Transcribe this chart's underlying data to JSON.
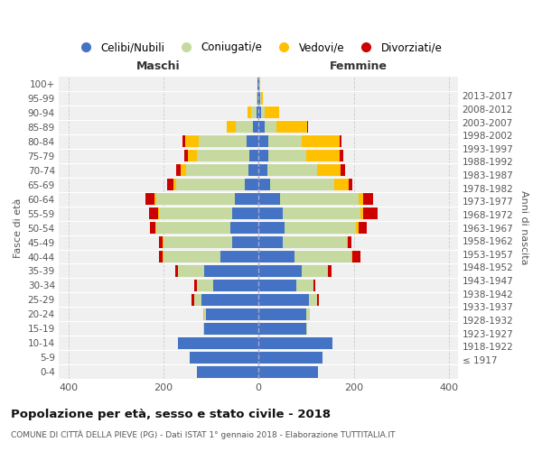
{
  "age_groups": [
    "100+",
    "95-99",
    "90-94",
    "85-89",
    "80-84",
    "75-79",
    "70-74",
    "65-69",
    "60-64",
    "55-59",
    "50-54",
    "45-49",
    "40-44",
    "35-39",
    "30-34",
    "25-29",
    "20-24",
    "15-19",
    "10-14",
    "5-9",
    "0-4"
  ],
  "birth_years": [
    "≤ 1917",
    "1918-1922",
    "1923-1927",
    "1928-1932",
    "1933-1937",
    "1938-1942",
    "1943-1947",
    "1948-1952",
    "1953-1957",
    "1958-1962",
    "1963-1967",
    "1968-1972",
    "1973-1977",
    "1978-1982",
    "1983-1987",
    "1988-1992",
    "1993-1997",
    "1998-2002",
    "2003-2007",
    "2008-2012",
    "2013-2017"
  ],
  "maschi": {
    "celibi": [
      2,
      2,
      5,
      12,
      25,
      20,
      22,
      28,
      50,
      55,
      60,
      55,
      80,
      115,
      95,
      120,
      110,
      115,
      170,
      145,
      130
    ],
    "coniugati": [
      0,
      2,
      10,
      35,
      100,
      110,
      130,
      145,
      165,
      155,
      155,
      145,
      120,
      55,
      35,
      15,
      5,
      2,
      0,
      0,
      0
    ],
    "vedovi": [
      0,
      1,
      8,
      20,
      30,
      18,
      12,
      5,
      3,
      2,
      2,
      1,
      1,
      0,
      0,
      0,
      2,
      0,
      0,
      0,
      0
    ],
    "divorziati": [
      0,
      0,
      0,
      0,
      5,
      8,
      10,
      15,
      20,
      18,
      12,
      8,
      8,
      5,
      5,
      5,
      0,
      0,
      0,
      0,
      0
    ]
  },
  "femmine": {
    "nubili": [
      2,
      3,
      5,
      12,
      20,
      20,
      18,
      25,
      45,
      50,
      55,
      50,
      75,
      90,
      80,
      105,
      100,
      100,
      155,
      135,
      125
    ],
    "coniugate": [
      0,
      2,
      8,
      25,
      70,
      80,
      105,
      135,
      165,
      165,
      150,
      135,
      120,
      55,
      35,
      18,
      8,
      2,
      0,
      0,
      0
    ],
    "vedove": [
      2,
      5,
      30,
      65,
      80,
      70,
      50,
      30,
      10,
      5,
      5,
      2,
      2,
      1,
      0,
      0,
      0,
      0,
      0,
      0,
      0
    ],
    "divorziate": [
      0,
      0,
      0,
      2,
      5,
      8,
      8,
      8,
      20,
      30,
      18,
      8,
      18,
      8,
      5,
      3,
      0,
      0,
      0,
      0,
      0
    ]
  },
  "colors": {
    "celibi": "#4472c4",
    "coniugati": "#c5d9a0",
    "vedovi": "#ffc000",
    "divorziati": "#cc0000"
  },
  "xlim": 420,
  "title": "Popolazione per età, sesso e stato civile - 2018",
  "subtitle": "COMUNE DI CITTÀ DELLA PIEVE (PG) - Dati ISTAT 1° gennaio 2018 - Elaborazione TUTTITALIA.IT",
  "ylabel_left": "Fasce di età",
  "ylabel_right": "Anni di nascita",
  "xlabel_maschi": "Maschi",
  "xlabel_femmine": "Femmine",
  "legend_labels": [
    "Celibi/Nubili",
    "Coniugati/e",
    "Vedovi/e",
    "Divorziati/e"
  ],
  "bg_color": "#ffffff",
  "plot_bg_color": "#f0f0f0",
  "grid_color": "#cccccc"
}
